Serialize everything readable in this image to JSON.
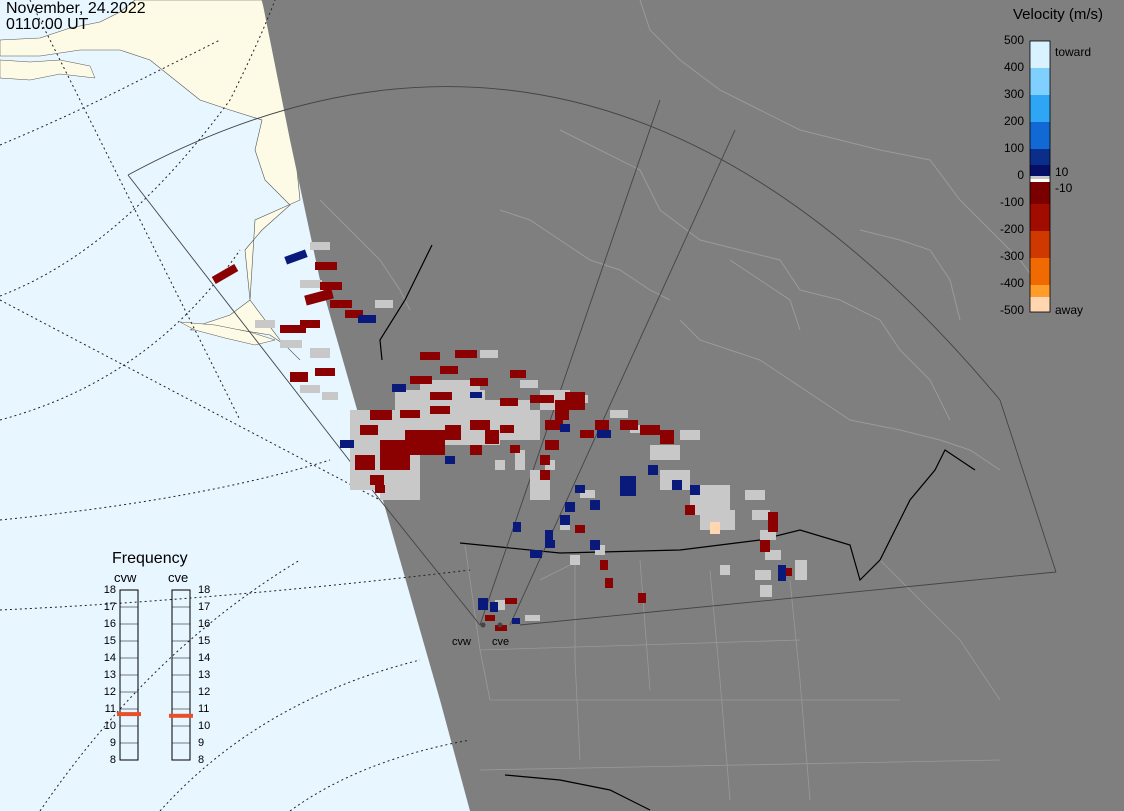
{
  "header": {
    "date": "November, 24.2022",
    "time": "0110:00 UT"
  },
  "colorbar": {
    "title": "Velocity (m/s)",
    "ticks": [
      "500",
      "400",
      "300",
      "200",
      "100",
      "0",
      "-100",
      "-200",
      "-300",
      "-400",
      "-500"
    ],
    "toward_label": "toward",
    "away_label": "away",
    "gs_upper": "10",
    "gs_lower": "-10",
    "colors": [
      "#f0fbff",
      "#9fdcff",
      "#3cb6ff",
      "#148ef0",
      "#0c5ec9",
      "#0a2f8a",
      "#060e66",
      "#7a0000",
      "#a00d00",
      "#cf3800",
      "#ef6a00",
      "#ff9c2a",
      "#ffd6b0"
    ]
  },
  "frequency_panel": {
    "title": "Frequency",
    "radars": [
      {
        "name": "cvw",
        "freq_mhz": 10.7
      },
      {
        "name": "cve",
        "freq_mhz": 10.6
      }
    ],
    "scale": [
      "18",
      "17",
      "16",
      "15",
      "14",
      "13",
      "12",
      "11",
      "10",
      "9",
      "8"
    ],
    "marker_color": "#e8502a"
  },
  "map": {
    "sites": [
      {
        "name": "cvw"
      },
      {
        "name": "cve"
      }
    ],
    "colors": {
      "ocean": "#e8f6ff",
      "land_lit": "#fdfbe6",
      "night": "#7f7f7f",
      "ground_scatter": "#c8c8c8",
      "coastline_night": "#9a9a9a",
      "border": "#000000",
      "fov_line": "#444444"
    }
  }
}
